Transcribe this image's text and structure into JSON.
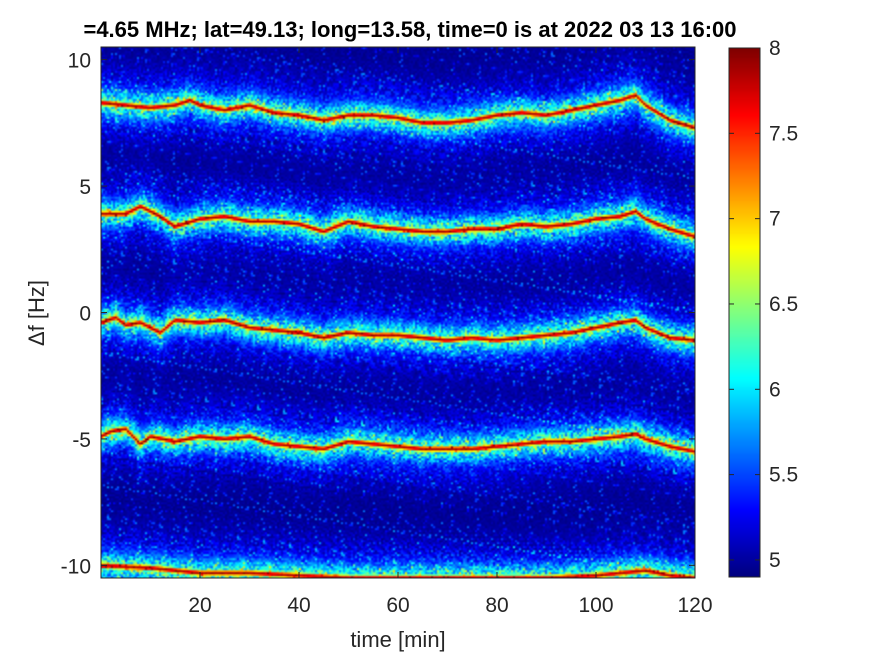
{
  "title": "=4.65 MHz;  lat=49.13; long=13.58, time=0 is at 2022 03 13 16:00",
  "chart_data": {
    "type": "heatmap",
    "title": "=4.65 MHz;  lat=49.13; long=13.58, time=0 is at 2022 03 13 16:00",
    "xlabel": "time [min]",
    "ylabel": "Δf [Hz]",
    "xlim": [
      0,
      120
    ],
    "ylim": [
      -10.5,
      10.5
    ],
    "x_ticks": [
      20,
      40,
      60,
      80,
      100,
      120
    ],
    "y_ticks": [
      10,
      5,
      0,
      -5,
      -10
    ],
    "x_tick_labels": [
      "20",
      "40",
      "60",
      "80",
      "100",
      "120"
    ],
    "y_tick_labels": [
      "10",
      "5",
      "0",
      "-5",
      "-10"
    ],
    "colormap": "jet",
    "clim": [
      4.9,
      8
    ],
    "colorbar_ticks": [
      8,
      7.5,
      7,
      6.5,
      6,
      5.5,
      5
    ],
    "colorbar_tick_labels": [
      "8",
      "7.5",
      "7",
      "6.5",
      "6",
      "5.5",
      "5"
    ],
    "grid": false,
    "ridges": [
      {
        "t": [
          0,
          5,
          10,
          15,
          18,
          20,
          25,
          30,
          35,
          40,
          45,
          50,
          55,
          60,
          65,
          70,
          75,
          80,
          85,
          90,
          95,
          100,
          105,
          108,
          110,
          115,
          120
        ],
        "df": [
          8.3,
          8.2,
          8.1,
          8.2,
          8.4,
          8.2,
          8.0,
          8.2,
          7.9,
          7.8,
          7.6,
          7.8,
          7.8,
          7.7,
          7.5,
          7.5,
          7.6,
          7.8,
          7.9,
          7.8,
          8.0,
          8.2,
          8.4,
          8.6,
          8.2,
          7.6,
          7.3
        ]
      },
      {
        "t": [
          0,
          5,
          8,
          12,
          15,
          20,
          25,
          30,
          35,
          40,
          45,
          50,
          55,
          60,
          65,
          70,
          75,
          80,
          85,
          90,
          95,
          100,
          105,
          108,
          110,
          115,
          120
        ],
        "df": [
          3.9,
          3.9,
          4.2,
          3.8,
          3.4,
          3.7,
          3.8,
          3.6,
          3.6,
          3.5,
          3.2,
          3.6,
          3.4,
          3.3,
          3.2,
          3.2,
          3.3,
          3.3,
          3.5,
          3.4,
          3.5,
          3.7,
          3.8,
          4.0,
          3.7,
          3.3,
          3.0
        ]
      },
      {
        "t": [
          0,
          3,
          5,
          8,
          12,
          15,
          20,
          25,
          30,
          35,
          40,
          45,
          50,
          55,
          60,
          65,
          70,
          75,
          80,
          85,
          90,
          95,
          100,
          105,
          108,
          110,
          115,
          120
        ],
        "df": [
          -0.4,
          -0.2,
          -0.5,
          -0.4,
          -0.8,
          -0.3,
          -0.4,
          -0.3,
          -0.6,
          -0.7,
          -0.8,
          -1.0,
          -0.8,
          -0.9,
          -0.9,
          -1.0,
          -1.1,
          -1.0,
          -1.1,
          -1.0,
          -0.9,
          -0.8,
          -0.6,
          -0.4,
          -0.3,
          -0.6,
          -1.0,
          -1.1
        ]
      },
      {
        "t": [
          0,
          2,
          5,
          8,
          10,
          15,
          20,
          25,
          30,
          35,
          40,
          45,
          50,
          55,
          60,
          65,
          70,
          75,
          80,
          85,
          90,
          95,
          100,
          105,
          108,
          110,
          115,
          120
        ],
        "df": [
          -4.9,
          -4.7,
          -4.6,
          -5.2,
          -4.9,
          -5.1,
          -4.9,
          -5.0,
          -4.9,
          -5.2,
          -5.3,
          -5.4,
          -5.1,
          -5.2,
          -5.3,
          -5.4,
          -5.4,
          -5.4,
          -5.3,
          -5.2,
          -5.1,
          -5.1,
          -5.0,
          -4.9,
          -4.8,
          -5.0,
          -5.3,
          -5.5
        ]
      },
      {
        "t": [
          0,
          10,
          20,
          30,
          40,
          50,
          60,
          70,
          80,
          90,
          100,
          105,
          110,
          115,
          120
        ],
        "df": [
          -10.0,
          -10.1,
          -10.3,
          -10.3,
          -10.4,
          -10.5,
          -10.5,
          -10.5,
          -10.5,
          -10.5,
          -10.4,
          -10.3,
          -10.2,
          -10.4,
          -10.5
        ]
      }
    ]
  }
}
